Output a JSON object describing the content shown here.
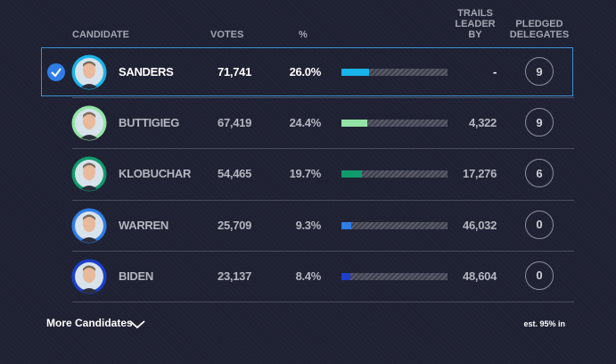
{
  "header": {
    "columns": [
      "CANDIDATE",
      "VOTES",
      "%",
      "TRAILS LEADER BY",
      "PLEDGED DELEGATES"
    ]
  },
  "rows": [
    {
      "name": "SANDERS",
      "votes": "71,741",
      "percent": {
        "value": 26.0,
        "label": "26.0%"
      },
      "trails_leader_by": "-",
      "delegates": "9",
      "color": "#19b4ea",
      "selected": true
    },
    {
      "name": "BUTTIGIEG",
      "votes": "67,419",
      "percent": {
        "value": 24.4,
        "label": "24.4%"
      },
      "trails_leader_by": "4,322",
      "delegates": "9",
      "color": "#93e3a6",
      "selected": false
    },
    {
      "name": "KLOBUCHAR",
      "votes": "54,465",
      "percent": {
        "value": 19.7,
        "label": "19.7%"
      },
      "trails_leader_by": "17,276",
      "delegates": "6",
      "color": "#0f9b6b",
      "selected": false
    },
    {
      "name": "WARREN",
      "votes": "25,709",
      "percent": {
        "value": 9.3,
        "label": "9.3%"
      },
      "trails_leader_by": "46,032",
      "delegates": "0",
      "color": "#2f7de8",
      "selected": false
    },
    {
      "name": "BIDEN",
      "votes": "23,137",
      "percent": {
        "value": 8.4,
        "label": "8.4%"
      },
      "trails_leader_by": "48,604",
      "delegates": "0",
      "color": "#1c3fcf",
      "selected": false
    }
  ],
  "footer": {
    "more": "More Candidates",
    "estimate": "est. 95% in"
  }
}
